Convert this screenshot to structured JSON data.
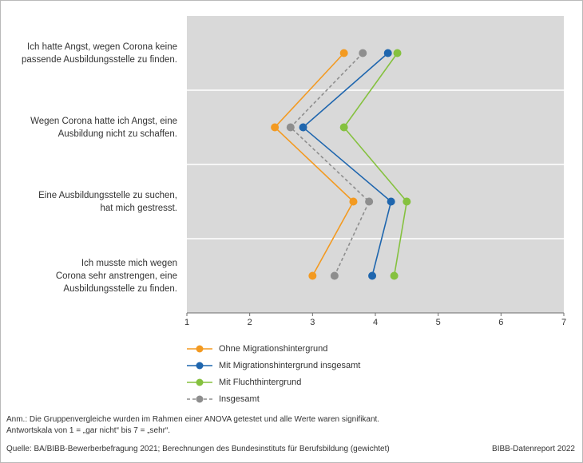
{
  "chart_data": {
    "type": "line",
    "orientation": "horizontal-categories",
    "categories": [
      [
        "Ich hatte Angst, wegen Corona keine",
        "passende Ausbildungsstelle zu finden."
      ],
      [
        "Wegen Corona hatte ich Angst, eine",
        "Ausbildung nicht zu schaffen."
      ],
      [
        "Eine Ausbildungsstelle zu suchen,",
        "hat mich gestresst."
      ],
      [
        "Ich musste mich wegen",
        "Corona sehr anstrengen, eine",
        "Ausbildungsstelle zu finden."
      ]
    ],
    "xlim": [
      1,
      7
    ],
    "xticks": [
      "1",
      "2",
      "3",
      "4",
      "5",
      "6",
      "7"
    ],
    "series": [
      {
        "name": "Ohne Migrationshintergrund",
        "color": "#f39a21",
        "dashed": false,
        "values": [
          3.5,
          2.4,
          3.65,
          3.0
        ]
      },
      {
        "name": "Mit Migrationshintergrund insgesamt",
        "color": "#1f66ae",
        "dashed": false,
        "values": [
          4.2,
          2.85,
          4.25,
          3.95
        ]
      },
      {
        "name": "Mit Fluchthintergrund",
        "color": "#85c13f",
        "dashed": false,
        "values": [
          4.35,
          3.5,
          4.5,
          4.3
        ]
      },
      {
        "name": "Insgesamt",
        "color": "#8e8e8e",
        "dashed": true,
        "values": [
          3.8,
          2.65,
          3.9,
          3.35
        ]
      }
    ]
  },
  "notes": {
    "line1": "Anm.: Die Gruppenvergleiche wurden im Rahmen einer ANOVA getestet und alle Werte waren signifikant.",
    "line2": "Antwortskala von 1 = „gar nicht“ bis 7 = „sehr“."
  },
  "source": "Quelle: BA/BIBB-Bewerberbefragung 2021; Berechnungen des Bundesinstituts für Berufsbildung (gewichtet)",
  "credit": "BIBB-Datenreport 2022"
}
